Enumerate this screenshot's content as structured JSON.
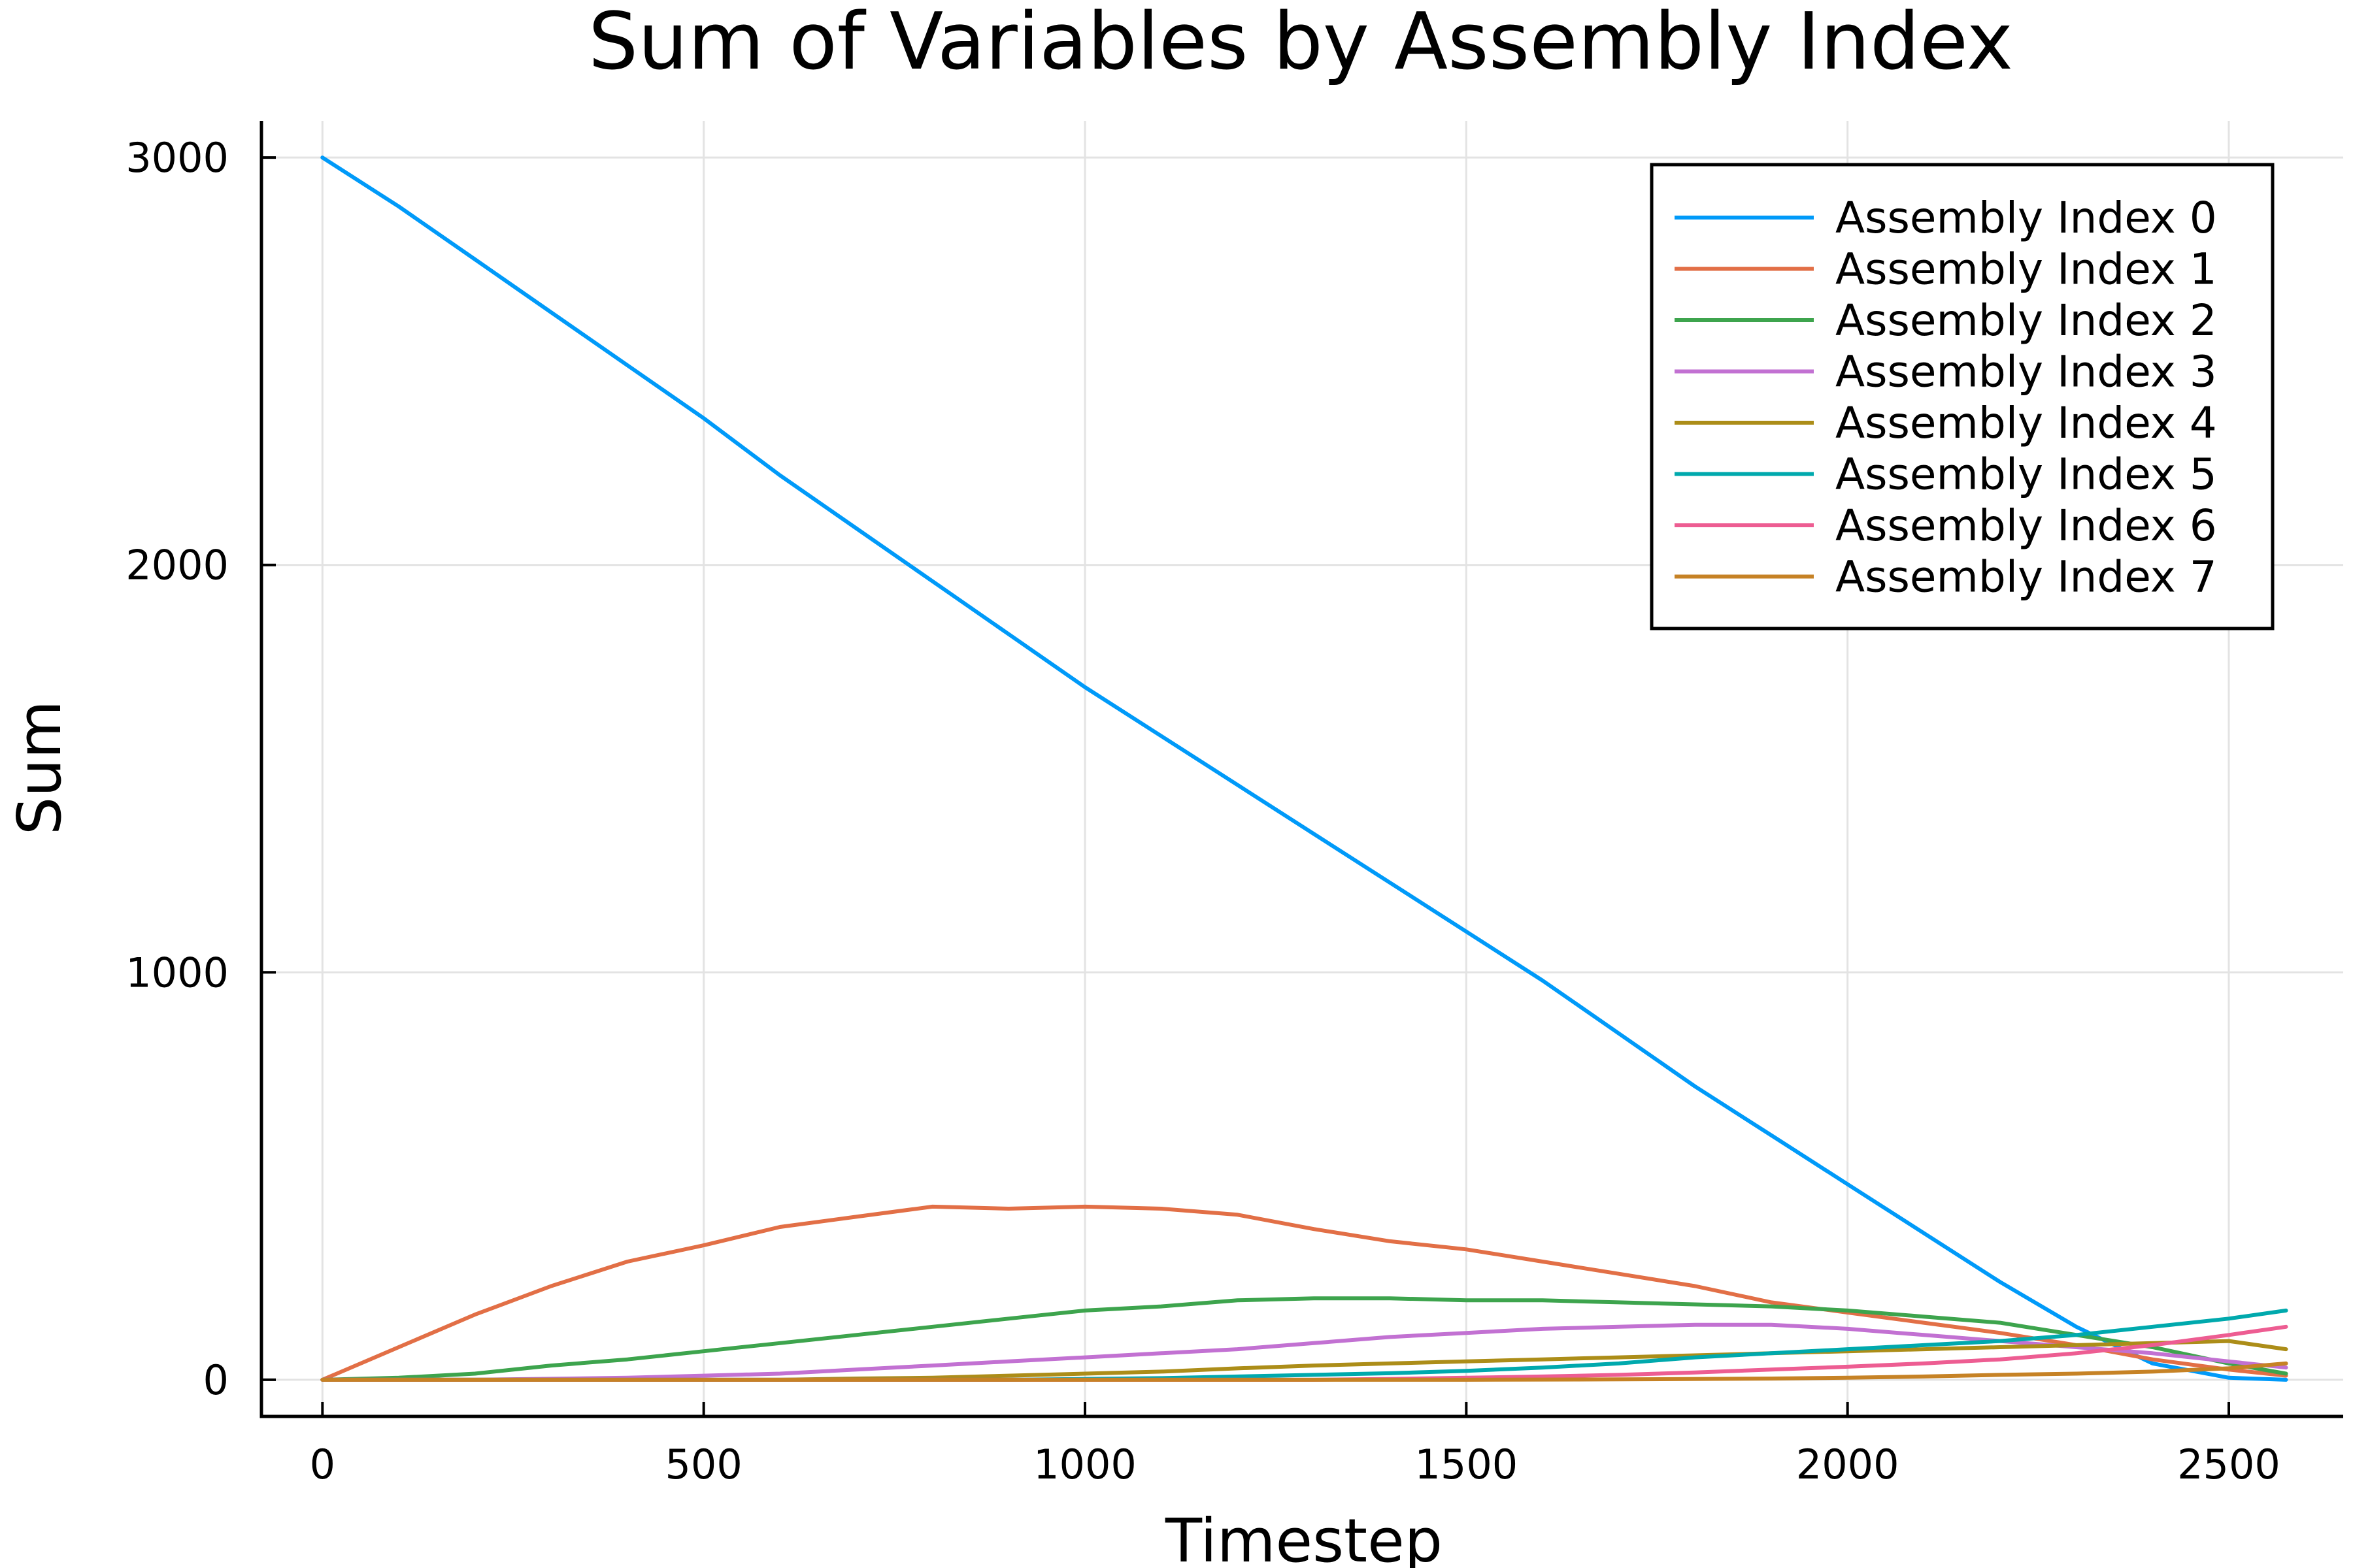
{
  "chart_data": {
    "type": "line",
    "title": "Sum of Variables by Assembly Index",
    "xlabel": "Timestep",
    "ylabel": "Sum",
    "xlim": [
      -80,
      2650
    ],
    "ylim": [
      -90,
      3090
    ],
    "xticks": [
      0,
      500,
      1000,
      1500,
      2000,
      2500
    ],
    "yticks": [
      0,
      1000,
      2000,
      3000
    ],
    "grid": true,
    "legend_position": "top-right",
    "series": [
      {
        "name": "Assembly Index 0",
        "color": "#009af9",
        "points": [
          [
            0,
            3000
          ],
          [
            100,
            2880
          ],
          [
            200,
            2750
          ],
          [
            300,
            2620
          ],
          [
            400,
            2490
          ],
          [
            500,
            2360
          ],
          [
            600,
            2220
          ],
          [
            700,
            2090
          ],
          [
            800,
            1960
          ],
          [
            900,
            1830
          ],
          [
            1000,
            1700
          ],
          [
            1100,
            1580
          ],
          [
            1200,
            1460
          ],
          [
            1300,
            1340
          ],
          [
            1400,
            1220
          ],
          [
            1500,
            1100
          ],
          [
            1600,
            980
          ],
          [
            1700,
            850
          ],
          [
            1800,
            720
          ],
          [
            1900,
            600
          ],
          [
            2000,
            480
          ],
          [
            2100,
            360
          ],
          [
            2200,
            240
          ],
          [
            2300,
            130
          ],
          [
            2400,
            40
          ],
          [
            2500,
            5
          ],
          [
            2575,
            0
          ]
        ]
      },
      {
        "name": "Assembly Index 1",
        "color": "#e26f46",
        "points": [
          [
            0,
            0
          ],
          [
            100,
            80
          ],
          [
            200,
            160
          ],
          [
            300,
            230
          ],
          [
            400,
            290
          ],
          [
            500,
            330
          ],
          [
            600,
            375
          ],
          [
            700,
            400
          ],
          [
            800,
            425
          ],
          [
            900,
            420
          ],
          [
            1000,
            425
          ],
          [
            1100,
            420
          ],
          [
            1200,
            405
          ],
          [
            1300,
            370
          ],
          [
            1400,
            340
          ],
          [
            1500,
            320
          ],
          [
            1600,
            290
          ],
          [
            1700,
            260
          ],
          [
            1800,
            230
          ],
          [
            1900,
            190
          ],
          [
            2000,
            165
          ],
          [
            2100,
            140
          ],
          [
            2200,
            115
          ],
          [
            2300,
            85
          ],
          [
            2400,
            50
          ],
          [
            2500,
            25
          ],
          [
            2575,
            10
          ]
        ]
      },
      {
        "name": "Assembly Index 2",
        "color": "#3da44d",
        "points": [
          [
            0,
            0
          ],
          [
            100,
            5
          ],
          [
            200,
            15
          ],
          [
            300,
            35
          ],
          [
            400,
            50
          ],
          [
            500,
            70
          ],
          [
            600,
            90
          ],
          [
            700,
            110
          ],
          [
            800,
            130
          ],
          [
            900,
            150
          ],
          [
            1000,
            170
          ],
          [
            1100,
            180
          ],
          [
            1200,
            195
          ],
          [
            1300,
            200
          ],
          [
            1400,
            200
          ],
          [
            1500,
            195
          ],
          [
            1600,
            195
          ],
          [
            1700,
            190
          ],
          [
            1800,
            185
          ],
          [
            1900,
            180
          ],
          [
            2000,
            170
          ],
          [
            2100,
            155
          ],
          [
            2200,
            140
          ],
          [
            2300,
            110
          ],
          [
            2400,
            80
          ],
          [
            2500,
            40
          ],
          [
            2575,
            15
          ]
        ]
      },
      {
        "name": "Assembly Index 3",
        "color": "#c271d2",
        "points": [
          [
            0,
            0
          ],
          [
            200,
            0
          ],
          [
            400,
            5
          ],
          [
            500,
            10
          ],
          [
            600,
            15
          ],
          [
            700,
            25
          ],
          [
            800,
            35
          ],
          [
            900,
            45
          ],
          [
            1000,
            55
          ],
          [
            1100,
            65
          ],
          [
            1200,
            75
          ],
          [
            1300,
            90
          ],
          [
            1400,
            105
          ],
          [
            1500,
            115
          ],
          [
            1600,
            125
          ],
          [
            1700,
            130
          ],
          [
            1800,
            135
          ],
          [
            1900,
            135
          ],
          [
            2000,
            125
          ],
          [
            2100,
            110
          ],
          [
            2200,
            95
          ],
          [
            2300,
            80
          ],
          [
            2400,
            65
          ],
          [
            2500,
            45
          ],
          [
            2575,
            30
          ]
        ]
      },
      {
        "name": "Assembly Index 4",
        "color": "#ac8d18",
        "points": [
          [
            0,
            0
          ],
          [
            600,
            0
          ],
          [
            700,
            3
          ],
          [
            800,
            5
          ],
          [
            900,
            10
          ],
          [
            1000,
            15
          ],
          [
            1100,
            20
          ],
          [
            1200,
            28
          ],
          [
            1300,
            35
          ],
          [
            1400,
            40
          ],
          [
            1500,
            45
          ],
          [
            1600,
            50
          ],
          [
            1700,
            55
          ],
          [
            1800,
            60
          ],
          [
            1900,
            65
          ],
          [
            2000,
            70
          ],
          [
            2100,
            75
          ],
          [
            2200,
            80
          ],
          [
            2300,
            85
          ],
          [
            2400,
            90
          ],
          [
            2500,
            95
          ],
          [
            2575,
            75
          ]
        ]
      },
      {
        "name": "Assembly Index 5",
        "color": "#00a9ad",
        "points": [
          [
            0,
            0
          ],
          [
            900,
            0
          ],
          [
            1000,
            2
          ],
          [
            1100,
            4
          ],
          [
            1200,
            8
          ],
          [
            1300,
            12
          ],
          [
            1400,
            16
          ],
          [
            1500,
            22
          ],
          [
            1600,
            30
          ],
          [
            1700,
            40
          ],
          [
            1800,
            55
          ],
          [
            1900,
            65
          ],
          [
            2000,
            75
          ],
          [
            2100,
            85
          ],
          [
            2200,
            95
          ],
          [
            2300,
            110
          ],
          [
            2400,
            130
          ],
          [
            2500,
            150
          ],
          [
            2575,
            170
          ]
        ]
      },
      {
        "name": "Assembly Index 6",
        "color": "#ed5d92",
        "points": [
          [
            0,
            0
          ],
          [
            1300,
            0
          ],
          [
            1400,
            2
          ],
          [
            1500,
            5
          ],
          [
            1600,
            8
          ],
          [
            1700,
            12
          ],
          [
            1800,
            18
          ],
          [
            1900,
            25
          ],
          [
            2000,
            32
          ],
          [
            2100,
            40
          ],
          [
            2200,
            50
          ],
          [
            2300,
            65
          ],
          [
            2400,
            85
          ],
          [
            2500,
            110
          ],
          [
            2575,
            130
          ]
        ]
      },
      {
        "name": "Assembly Index 7",
        "color": "#c68225",
        "points": [
          [
            0,
            0
          ],
          [
            1500,
            0
          ],
          [
            1700,
            1
          ],
          [
            1900,
            3
          ],
          [
            2000,
            5
          ],
          [
            2100,
            8
          ],
          [
            2200,
            12
          ],
          [
            2300,
            15
          ],
          [
            2400,
            20
          ],
          [
            2500,
            28
          ],
          [
            2575,
            40
          ]
        ]
      }
    ]
  }
}
